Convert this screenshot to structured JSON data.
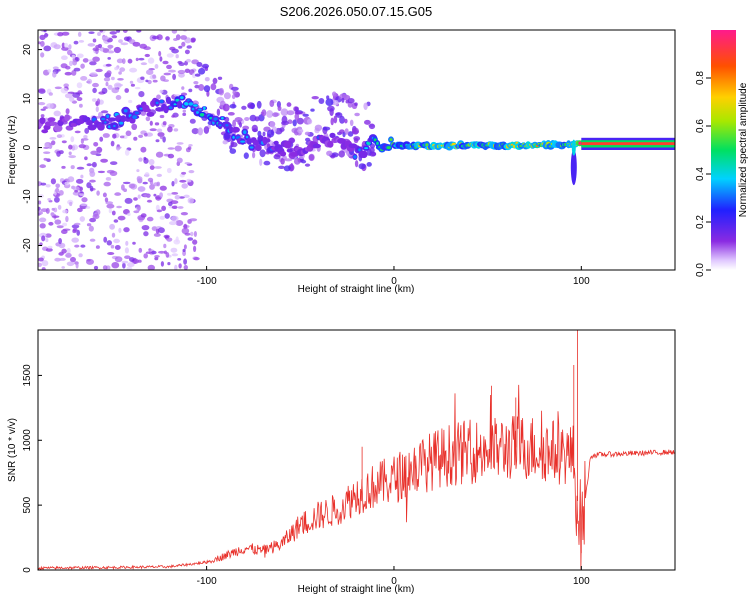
{
  "title": "S206.2026.050.07.15.G05",
  "colors": {
    "snr_line": "#e8302a",
    "spec_low": "#7a1ae6",
    "spec_mid": "#00d2ff",
    "spec_high": "#ff2020"
  },
  "chart_data": [
    {
      "type": "heatmap",
      "name": "spectrogram",
      "xlabel": "Height of straight line (km)",
      "ylabel": "Frequency (Hz)",
      "xlim": [
        -190,
        150
      ],
      "ylim": [
        -25,
        24
      ],
      "xticks": [
        -100,
        0,
        100
      ],
      "xtick_labels": [
        "-100",
        "0",
        "100"
      ],
      "yticks": [
        -20,
        -10,
        0,
        10,
        20
      ],
      "ytick_labels": [
        "-20",
        "-10",
        "0",
        "10",
        "20"
      ],
      "colorbar": {
        "label": "Normalized spectral amplitude",
        "range": [
          0,
          1
        ],
        "ticks": [
          0,
          0.2,
          0.4,
          0.6,
          0.8
        ],
        "tick_labels": [
          "0.0",
          "0.2",
          "0.4",
          "0.6",
          "0.8"
        ]
      },
      "ridge": [
        {
          "x": -190,
          "f": 4.5,
          "amp": 0.22
        },
        {
          "x": -170,
          "f": 5,
          "amp": 0.25
        },
        {
          "x": -150,
          "f": 5.5,
          "amp": 0.35
        },
        {
          "x": -130,
          "f": 8,
          "amp": 0.3
        },
        {
          "x": -115,
          "f": 9.5,
          "amp": 0.4
        },
        {
          "x": -105,
          "f": 7.5,
          "amp": 0.45
        },
        {
          "x": -95,
          "f": 6,
          "amp": 0.4
        },
        {
          "x": -85,
          "f": 3,
          "amp": 0.35
        },
        {
          "x": -75,
          "f": 1,
          "amp": 0.35
        },
        {
          "x": -65,
          "f": 0,
          "amp": 0.3
        },
        {
          "x": -50,
          "f": -1,
          "amp": 0.25
        },
        {
          "x": -40,
          "f": 1,
          "amp": 0.28
        },
        {
          "x": -30,
          "f": 2,
          "amp": 0.25
        },
        {
          "x": -20,
          "f": -1,
          "amp": 0.3
        },
        {
          "x": -10,
          "f": 1,
          "amp": 0.45
        },
        {
          "x": 0,
          "f": 0.5,
          "amp": 0.55
        },
        {
          "x": 20,
          "f": 0.2,
          "amp": 0.7
        },
        {
          "x": 40,
          "f": 0.5,
          "amp": 0.65
        },
        {
          "x": 60,
          "f": 0.5,
          "amp": 0.7
        },
        {
          "x": 80,
          "f": 0.5,
          "amp": 0.75
        },
        {
          "x": 92,
          "f": 0.5,
          "amp": 0.6
        },
        {
          "x": 100,
          "f": 0.8,
          "amp": 0.95
        },
        {
          "x": 150,
          "f": 0.8,
          "amp": 0.95
        }
      ]
    },
    {
      "type": "line",
      "name": "snr",
      "xlabel": "Height of straight line (km)",
      "ylabel": "SNR (10 * v/v)",
      "xlim": [
        -190,
        150
      ],
      "ylim": [
        0,
        1850
      ],
      "xticks": [
        -100,
        0,
        100
      ],
      "xtick_labels": [
        "-100",
        "0",
        "100"
      ],
      "yticks": [
        0,
        500,
        1000,
        1500
      ],
      "ytick_labels": [
        "0",
        "500",
        "1000",
        "1500"
      ],
      "series": [
        {
          "name": "SNR",
          "envelope_x": [
            -190,
            -150,
            -120,
            -100,
            -90,
            -80,
            -70,
            -60,
            -50,
            -40,
            -30,
            -20,
            -10,
            0,
            10,
            20,
            30,
            40,
            50,
            60,
            70,
            80,
            90,
            95,
            100,
            105,
            110,
            130,
            150
          ],
          "envelope_y": [
            15,
            20,
            25,
            60,
            110,
            170,
            150,
            200,
            350,
            420,
            470,
            580,
            650,
            700,
            780,
            840,
            890,
            910,
            920,
            940,
            950,
            930,
            900,
            880,
            300,
            880,
            890,
            900,
            910
          ],
          "peaks": [
            {
              "x": -17,
              "y": 950
            },
            {
              "x": 52,
              "y": 1420
            },
            {
              "x": 65,
              "y": 1330
            },
            {
              "x": 98,
              "y": 1850
            },
            {
              "x": 96,
              "y": 1580
            },
            {
              "x": 100,
              "y": 130
            }
          ]
        }
      ]
    }
  ]
}
